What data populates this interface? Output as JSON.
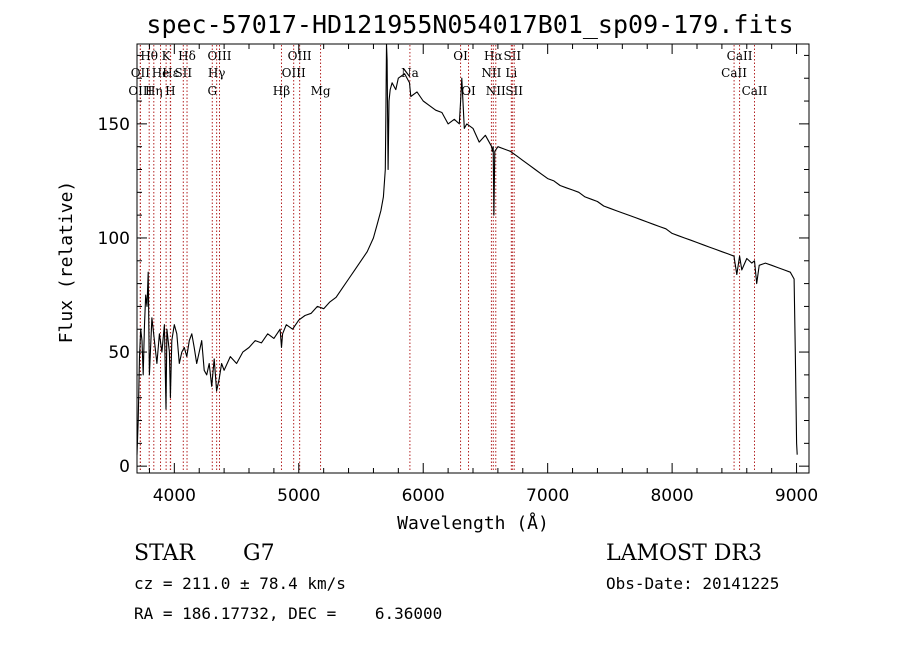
{
  "chart_data": {
    "type": "line",
    "title": "spec-57017-HD121955N054017B01_sp09-179.fits",
    "xlabel": "Wavelength (Å)",
    "ylabel": "Flux (relative)",
    "xlim": [
      3700,
      9100
    ],
    "ylim": [
      -3,
      185
    ],
    "x_ticks": [
      4000,
      5000,
      6000,
      7000,
      8000,
      9000
    ],
    "y_ticks": [
      0,
      50,
      100,
      150
    ],
    "x_tick_labels": [
      "4000",
      "5000",
      "6000",
      "7000",
      "8000",
      "9000"
    ],
    "y_tick_labels": [
      "0",
      "50",
      "100",
      "150"
    ],
    "grid": false,
    "series": [
      {
        "name": "flux",
        "x": [
          3700,
          3710,
          3720,
          3730,
          3740,
          3750,
          3760,
          3770,
          3780,
          3790,
          3800,
          3820,
          3840,
          3860,
          3880,
          3900,
          3920,
          3933,
          3940,
          3960,
          3968,
          3980,
          4000,
          4020,
          4040,
          4060,
          4080,
          4100,
          4120,
          4140,
          4160,
          4180,
          4200,
          4220,
          4240,
          4260,
          4280,
          4300,
          4320,
          4340,
          4360,
          4380,
          4400,
          4450,
          4500,
          4550,
          4600,
          4650,
          4700,
          4750,
          4800,
          4850,
          4861,
          4870,
          4900,
          4950,
          5000,
          5050,
          5100,
          5150,
          5200,
          5250,
          5300,
          5350,
          5400,
          5450,
          5500,
          5550,
          5600,
          5630,
          5660,
          5680,
          5695,
          5700,
          5705,
          5710,
          5718,
          5725,
          5735,
          5750,
          5780,
          5800,
          5850,
          5890,
          5900,
          5950,
          6000,
          6050,
          6100,
          6150,
          6200,
          6250,
          6290,
          6300,
          6310,
          6330,
          6350,
          6400,
          6450,
          6500,
          6550,
          6555,
          6562,
          6568,
          6575,
          6600,
          6650,
          6700,
          6750,
          6800,
          6850,
          6900,
          6950,
          7000,
          7050,
          7100,
          7150,
          7200,
          7250,
          7300,
          7350,
          7400,
          7450,
          7500,
          7550,
          7600,
          7650,
          7700,
          7750,
          7800,
          7850,
          7900,
          7950,
          8000,
          8050,
          8100,
          8150,
          8200,
          8250,
          8300,
          8350,
          8400,
          8450,
          8498,
          8500,
          8520,
          8542,
          8560,
          8600,
          8640,
          8662,
          8680,
          8700,
          8750,
          8800,
          8850,
          8900,
          8950,
          8980,
          8990,
          9000,
          9005
        ],
        "values": [
          5,
          20,
          48,
          60,
          55,
          40,
          62,
          75,
          70,
          85,
          40,
          65,
          55,
          45,
          58,
          50,
          62,
          25,
          60,
          50,
          30,
          55,
          62,
          58,
          45,
          50,
          52,
          48,
          55,
          58,
          52,
          45,
          50,
          55,
          42,
          40,
          45,
          35,
          47,
          33,
          38,
          45,
          42,
          48,
          45,
          50,
          52,
          55,
          54,
          58,
          56,
          60,
          52,
          58,
          62,
          60,
          64,
          66,
          67,
          70,
          69,
          72,
          74,
          78,
          82,
          86,
          90,
          94,
          100,
          106,
          112,
          118,
          130,
          155,
          190,
          178,
          130,
          160,
          165,
          168,
          165,
          170,
          172,
          168,
          162,
          164,
          160,
          158,
          156,
          155,
          150,
          152,
          150,
          160,
          170,
          148,
          150,
          148,
          142,
          145,
          140,
          138,
          140,
          110,
          138,
          140,
          139,
          138,
          136,
          134,
          132,
          130,
          128,
          126,
          125,
          123,
          122,
          121,
          120,
          118,
          117,
          116,
          114,
          113,
          112,
          111,
          110,
          109,
          108,
          107,
          106,
          105,
          104,
          102,
          101,
          100,
          99,
          98,
          97,
          96,
          95,
          94,
          93,
          92,
          91,
          84,
          92,
          86,
          91,
          89,
          90,
          80,
          88,
          89,
          88,
          87,
          86,
          85,
          82,
          50,
          10,
          5
        ]
      }
    ],
    "spectral_lines": [
      {
        "name": "Hθ",
        "x": 3798,
        "row": 0
      },
      {
        "name": "OII",
        "x": 3727,
        "row": 1
      },
      {
        "name": "OIII",
        "x": 3727,
        "row": 2
      },
      {
        "name": "Hη",
        "x": 3835,
        "row": 2
      },
      {
        "name": "He",
        "x": 3889,
        "row": 1
      },
      {
        "name": "K",
        "x": 3934,
        "row": 0
      },
      {
        "name": "Hε",
        "x": 3970,
        "row": 1
      },
      {
        "name": "H",
        "x": 3968,
        "row": 2
      },
      {
        "name": "SII",
        "x": 4072,
        "row": 1
      },
      {
        "name": "Hδ",
        "x": 4102,
        "row": 0
      },
      {
        "name": "OIII",
        "x": 4363,
        "row": 0
      },
      {
        "name": "Hγ",
        "x": 4340,
        "row": 1
      },
      {
        "name": "G",
        "x": 4305,
        "row": 2
      },
      {
        "name": "Hβ",
        "x": 4861,
        "row": 2
      },
      {
        "name": "OIII",
        "x": 5007,
        "row": 0
      },
      {
        "name": "OIII",
        "x": 4959,
        "row": 1
      },
      {
        "name": "Mg",
        "x": 5175,
        "row": 2
      },
      {
        "name": "Na",
        "x": 5893,
        "row": 1
      },
      {
        "name": "OI",
        "x": 6300,
        "row": 0
      },
      {
        "name": "OI",
        "x": 6364,
        "row": 2
      },
      {
        "name": "Hα",
        "x": 6563,
        "row": 0
      },
      {
        "name": "NII",
        "x": 6548,
        "row": 1
      },
      {
        "name": "NII",
        "x": 6583,
        "row": 2
      },
      {
        "name": "SII",
        "x": 6716,
        "row": 0
      },
      {
        "name": "Li",
        "x": 6708,
        "row": 1
      },
      {
        "name": "SII",
        "x": 6731,
        "row": 2
      },
      {
        "name": "CaII",
        "x": 8542,
        "row": 0
      },
      {
        "name": "CaII",
        "x": 8498,
        "row": 1
      },
      {
        "name": "CaII",
        "x": 8662,
        "row": 2
      }
    ]
  },
  "info": {
    "object_type": "STAR",
    "subclass": "G7",
    "survey": "LAMOST DR3",
    "redshift": "cz = 211.0 ± 78.4 km/s",
    "obs_date": "Obs-Date: 20141225",
    "coords": "RA = 186.17732, DEC =    6.36000"
  },
  "colors": {
    "spectrum": "#000000",
    "line_marker": "#b22222",
    "axes": "#000000",
    "background": "#ffffff"
  }
}
